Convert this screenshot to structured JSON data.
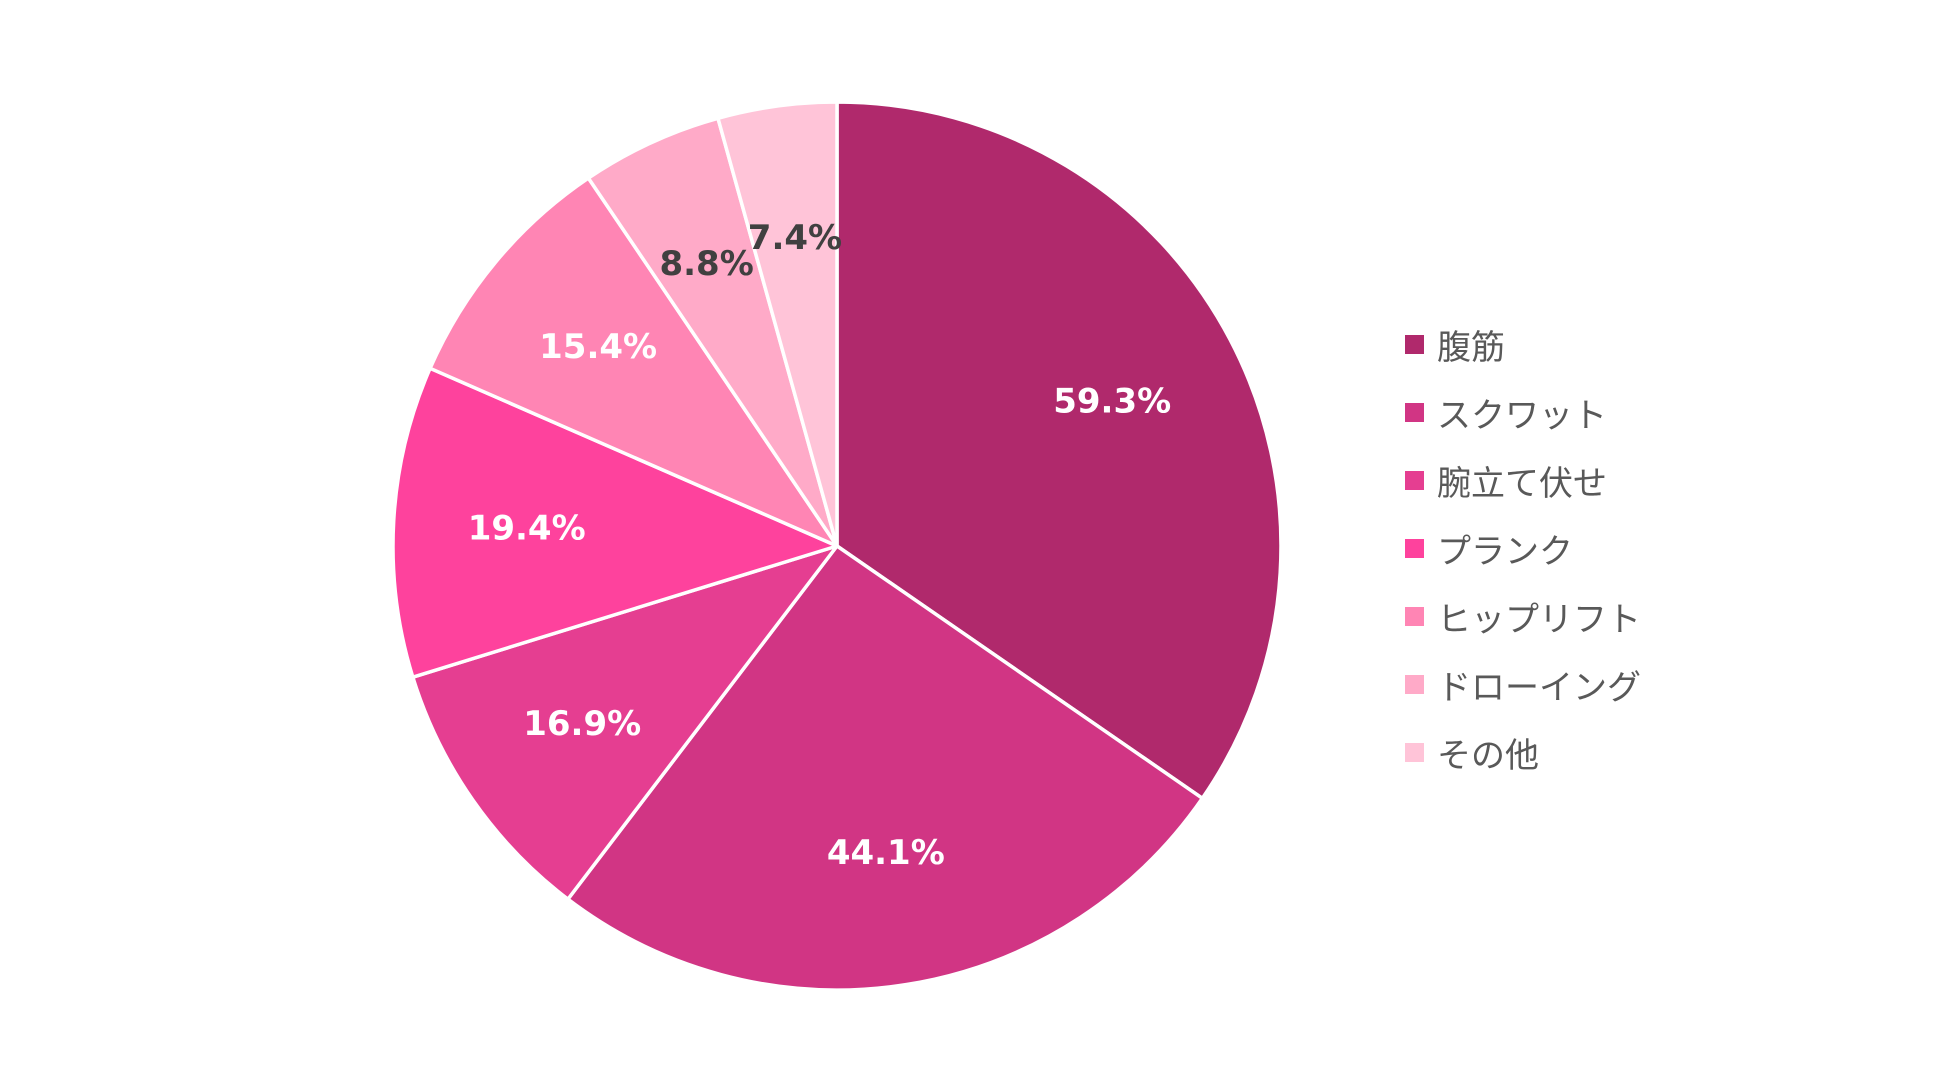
{
  "chart_data": {
    "type": "pie",
    "categories": [
      "腹筋",
      "スクワット",
      "腕立て伏せ",
      "プランク",
      "ヒップリフト",
      "ドローイング",
      "その他"
    ],
    "values": [
      59.3,
      44.1,
      16.9,
      19.4,
      15.4,
      8.8,
      7.4
    ],
    "value_labels": [
      "59.3%",
      "44.1%",
      "16.9%",
      "19.4%",
      "15.4%",
      "8.8%",
      "7.4%"
    ],
    "colors": [
      "#b0296c",
      "#d13584",
      "#e53e91",
      "#fe429d",
      "#ff85b4",
      "#ffaac8",
      "#ffc4d8"
    ],
    "label_colors": [
      "#ffffff",
      "#ffffff",
      "#ffffff",
      "#ffffff",
      "#ffffff",
      "#404040",
      "#404040"
    ],
    "start_angle": "12 o'clock",
    "direction": "clockwise",
    "legend_position": "right",
    "title": ""
  }
}
